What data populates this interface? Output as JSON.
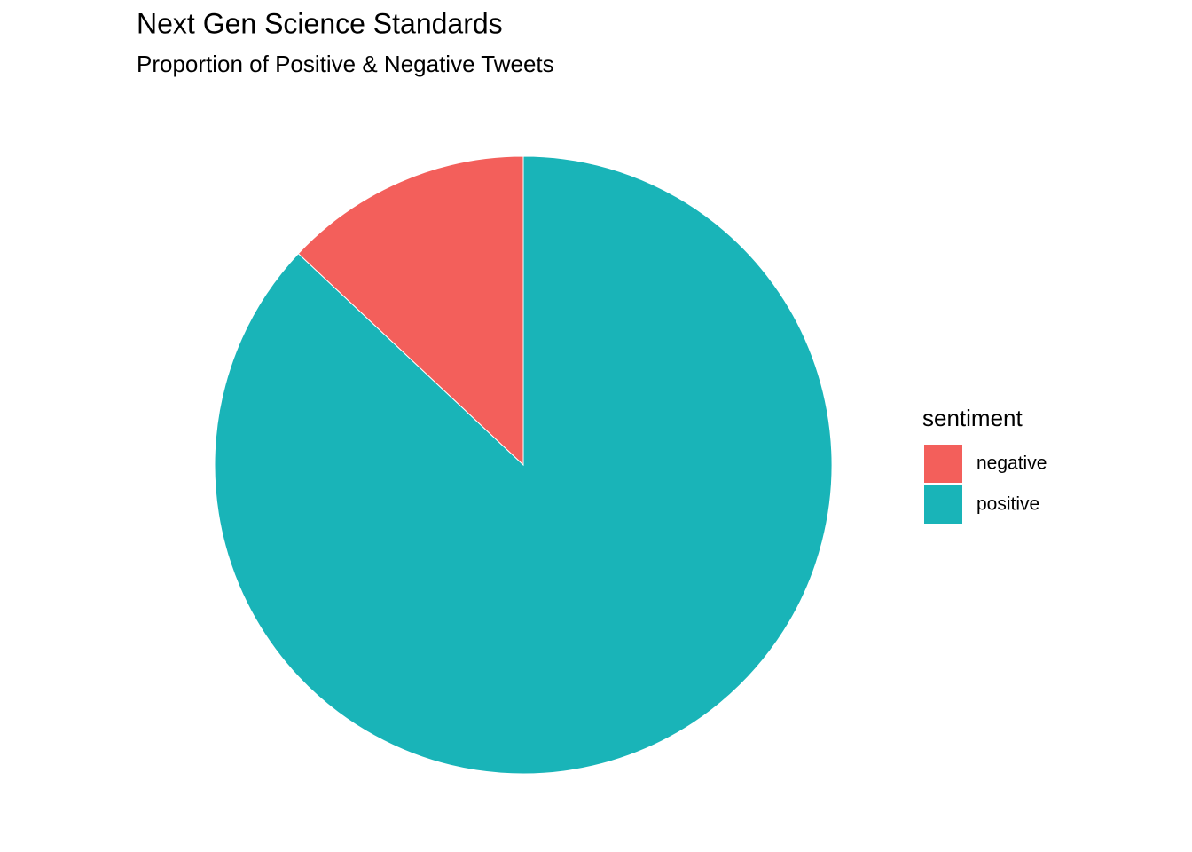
{
  "chart_data": {
    "type": "pie",
    "title": "Next Gen Science Standards",
    "subtitle": "Proportion of Positive & Negative Tweets",
    "legend_title": "sentiment",
    "categories": [
      "negative",
      "positive"
    ],
    "values": [
      13,
      87
    ],
    "colors": [
      "#f35f5b",
      "#19b4b8"
    ],
    "legend": "right"
  }
}
